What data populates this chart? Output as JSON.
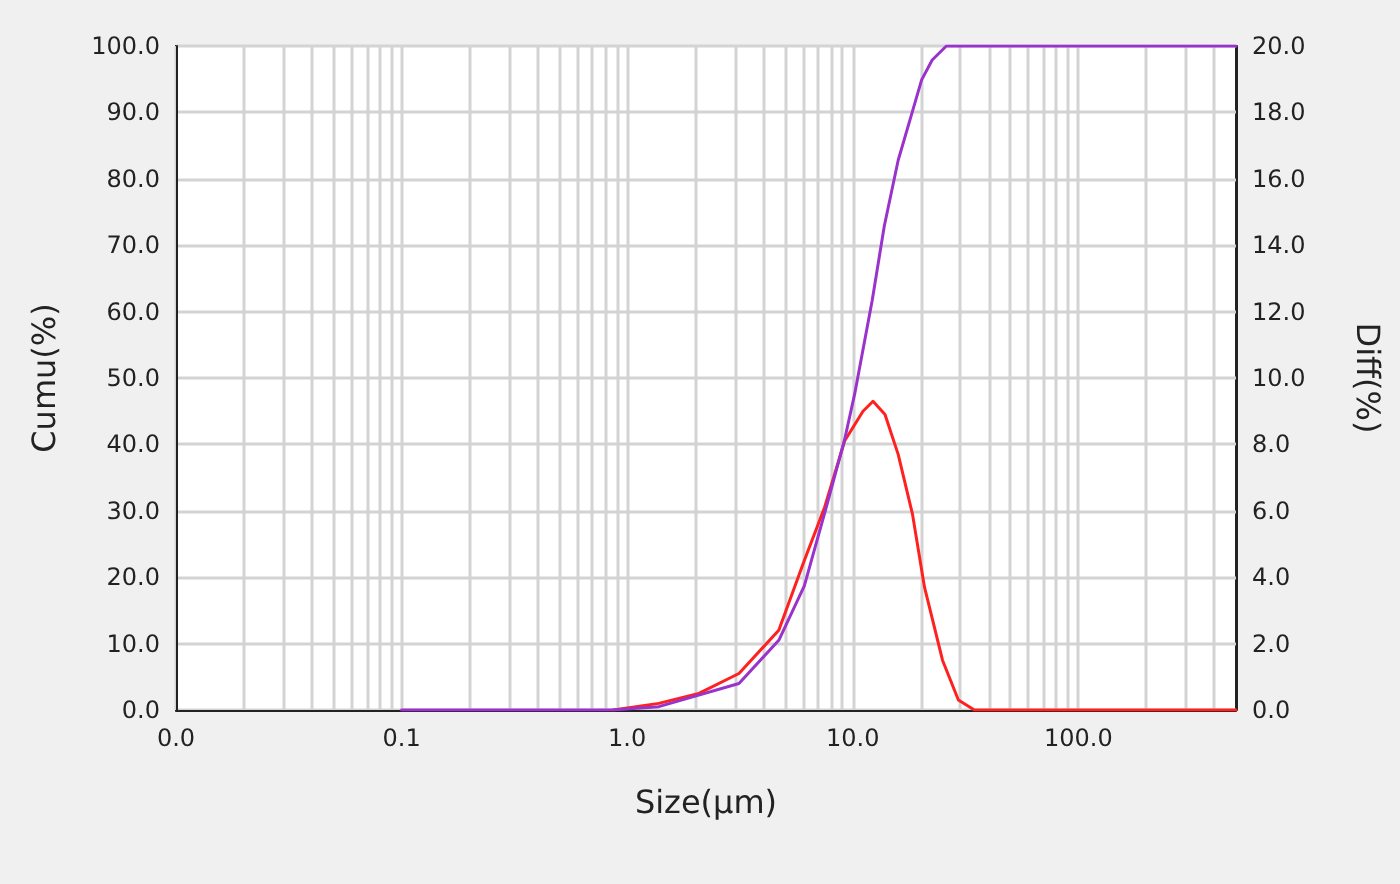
{
  "chart_data": {
    "type": "line",
    "xlabel": "Size(μm)",
    "ylabel": "Cumu(%)",
    "y2label": "Diff(%)",
    "log": "x",
    "grid": true,
    "marker": "none",
    "line_style": "solid",
    "xlim": [
      0.01,
      500
    ],
    "xticks": [
      {
        "value": 0.01,
        "label": "0.0"
      },
      {
        "value": 0.02,
        "label": null
      },
      {
        "value": 0.03,
        "label": null
      },
      {
        "value": 0.04,
        "label": null
      },
      {
        "value": 0.05,
        "label": null
      },
      {
        "value": 0.06,
        "label": null
      },
      {
        "value": 0.07,
        "label": null
      },
      {
        "value": 0.08,
        "label": null
      },
      {
        "value": 0.09,
        "label": null
      },
      {
        "value": 0.1,
        "label": "0.1"
      },
      {
        "value": 0.2,
        "label": null
      },
      {
        "value": 0.3,
        "label": null
      },
      {
        "value": 0.4,
        "label": null
      },
      {
        "value": 0.5,
        "label": null
      },
      {
        "value": 0.6,
        "label": null
      },
      {
        "value": 0.7,
        "label": null
      },
      {
        "value": 0.8,
        "label": null
      },
      {
        "value": 0.9,
        "label": null
      },
      {
        "value": 1,
        "label": "1.0"
      },
      {
        "value": 2,
        "label": null
      },
      {
        "value": 3,
        "label": null
      },
      {
        "value": 4,
        "label": null
      },
      {
        "value": 5,
        "label": null
      },
      {
        "value": 6,
        "label": null
      },
      {
        "value": 7,
        "label": null
      },
      {
        "value": 8,
        "label": null
      },
      {
        "value": 9,
        "label": null
      },
      {
        "value": 10,
        "label": "10.0"
      },
      {
        "value": 20,
        "label": null
      },
      {
        "value": 30,
        "label": null
      },
      {
        "value": 40,
        "label": null
      },
      {
        "value": 50,
        "label": null
      },
      {
        "value": 60,
        "label": null
      },
      {
        "value": 70,
        "label": null
      },
      {
        "value": 80,
        "label": null
      },
      {
        "value": 90,
        "label": null
      },
      {
        "value": 100,
        "label": "100.0"
      },
      {
        "value": 200,
        "label": null
      },
      {
        "value": 300,
        "label": null
      },
      {
        "value": 400,
        "label": null
      }
    ],
    "ylim": [
      0,
      100
    ],
    "yticks": [
      {
        "value": 0,
        "label": "0.0"
      },
      {
        "value": 10,
        "label": "10.0"
      },
      {
        "value": 20,
        "label": "20.0"
      },
      {
        "value": 30,
        "label": "30.0"
      },
      {
        "value": 40,
        "label": "40.0"
      },
      {
        "value": 50,
        "label": "50.0"
      },
      {
        "value": 60,
        "label": "60.0"
      },
      {
        "value": 70,
        "label": "70.0"
      },
      {
        "value": 80,
        "label": "80.0"
      },
      {
        "value": 90,
        "label": "90.0"
      },
      {
        "value": 100,
        "label": "100.0"
      }
    ],
    "y2lim": [
      0,
      20
    ],
    "y2ticks": [
      {
        "value": 0,
        "label": "0.0"
      },
      {
        "value": 2,
        "label": "2.0"
      },
      {
        "value": 4,
        "label": "4.0"
      },
      {
        "value": 6,
        "label": "6.0"
      },
      {
        "value": 8,
        "label": "8.0"
      },
      {
        "value": 10,
        "label": "10.0"
      },
      {
        "value": 12,
        "label": "12.0"
      },
      {
        "value": 14,
        "label": "14.0"
      },
      {
        "value": 16,
        "label": "16.0"
      },
      {
        "value": 18,
        "label": "18.0"
      },
      {
        "value": 20,
        "label": "20.0"
      }
    ],
    "series": [
      {
        "color": "#ff2020",
        "axis": "y2",
        "x": [
          0.87,
          1.38,
          2.08,
          3.13,
          4.7,
          6.1,
          7.5,
          9.2,
          11.1,
          12.3,
          13.9,
          15.9,
          18.4,
          20.8,
          25,
          29.4,
          34.6,
          500
        ],
        "values": [
          0,
          0.2,
          0.5,
          1.1,
          2.4,
          4.5,
          6.1,
          8.1,
          9.0,
          9.3,
          8.9,
          7.7,
          5.9,
          3.7,
          1.5,
          0.3,
          0,
          0
        ]
      },
      {
        "color": "#9933cc",
        "x": [
          0.1,
          0.85,
          1.38,
          3.13,
          4.7,
          6.1,
          7.5,
          9.2,
          10.2,
          12.2,
          13.8,
          15.9,
          18.3,
          20.2,
          22.5,
          26,
          500
        ],
        "values": [
          0,
          0,
          0.5,
          4,
          10.5,
          18.7,
          29.6,
          40.7,
          47.6,
          61.7,
          72.9,
          82.8,
          89.9,
          94.9,
          97.9,
          100,
          100
        ]
      }
    ]
  }
}
